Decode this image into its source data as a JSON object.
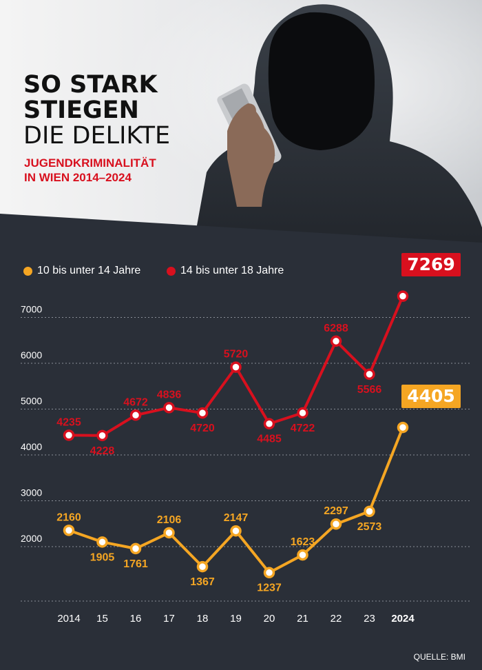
{
  "header": {
    "title_line1": "SO STARK",
    "title_line2": "STIEGEN",
    "title_line3": "DIE DELIKTE",
    "subtitle_line1": "JUGENDKRIMINALITÄT",
    "subtitle_line2": "IN WIEN 2014–2024"
  },
  "source": "QUELLE: BMI",
  "colors": {
    "series_young": "#f5a623",
    "series_old": "#d8101e",
    "background": "#2a2f38",
    "grid": "#8a8f98"
  },
  "chart_data": {
    "type": "line",
    "categories": [
      "2014",
      "15",
      "16",
      "17",
      "18",
      "19",
      "20",
      "21",
      "22",
      "23",
      "2024"
    ],
    "series": [
      {
        "name": "10 bis unter 14 Jahre",
        "values": [
          2160,
          1905,
          1761,
          2106,
          1367,
          2147,
          1237,
          1623,
          2297,
          2573,
          4405
        ]
      },
      {
        "name": "14 bis unter 18 Jahre",
        "values": [
          4235,
          4228,
          4672,
          4836,
          4720,
          5720,
          4485,
          4722,
          6288,
          5566,
          7269
        ]
      }
    ],
    "yticks": [
      2000,
      3000,
      4000,
      5000,
      6000,
      7000
    ],
    "grid": true,
    "legend": "top-left",
    "highlight_last": true
  }
}
